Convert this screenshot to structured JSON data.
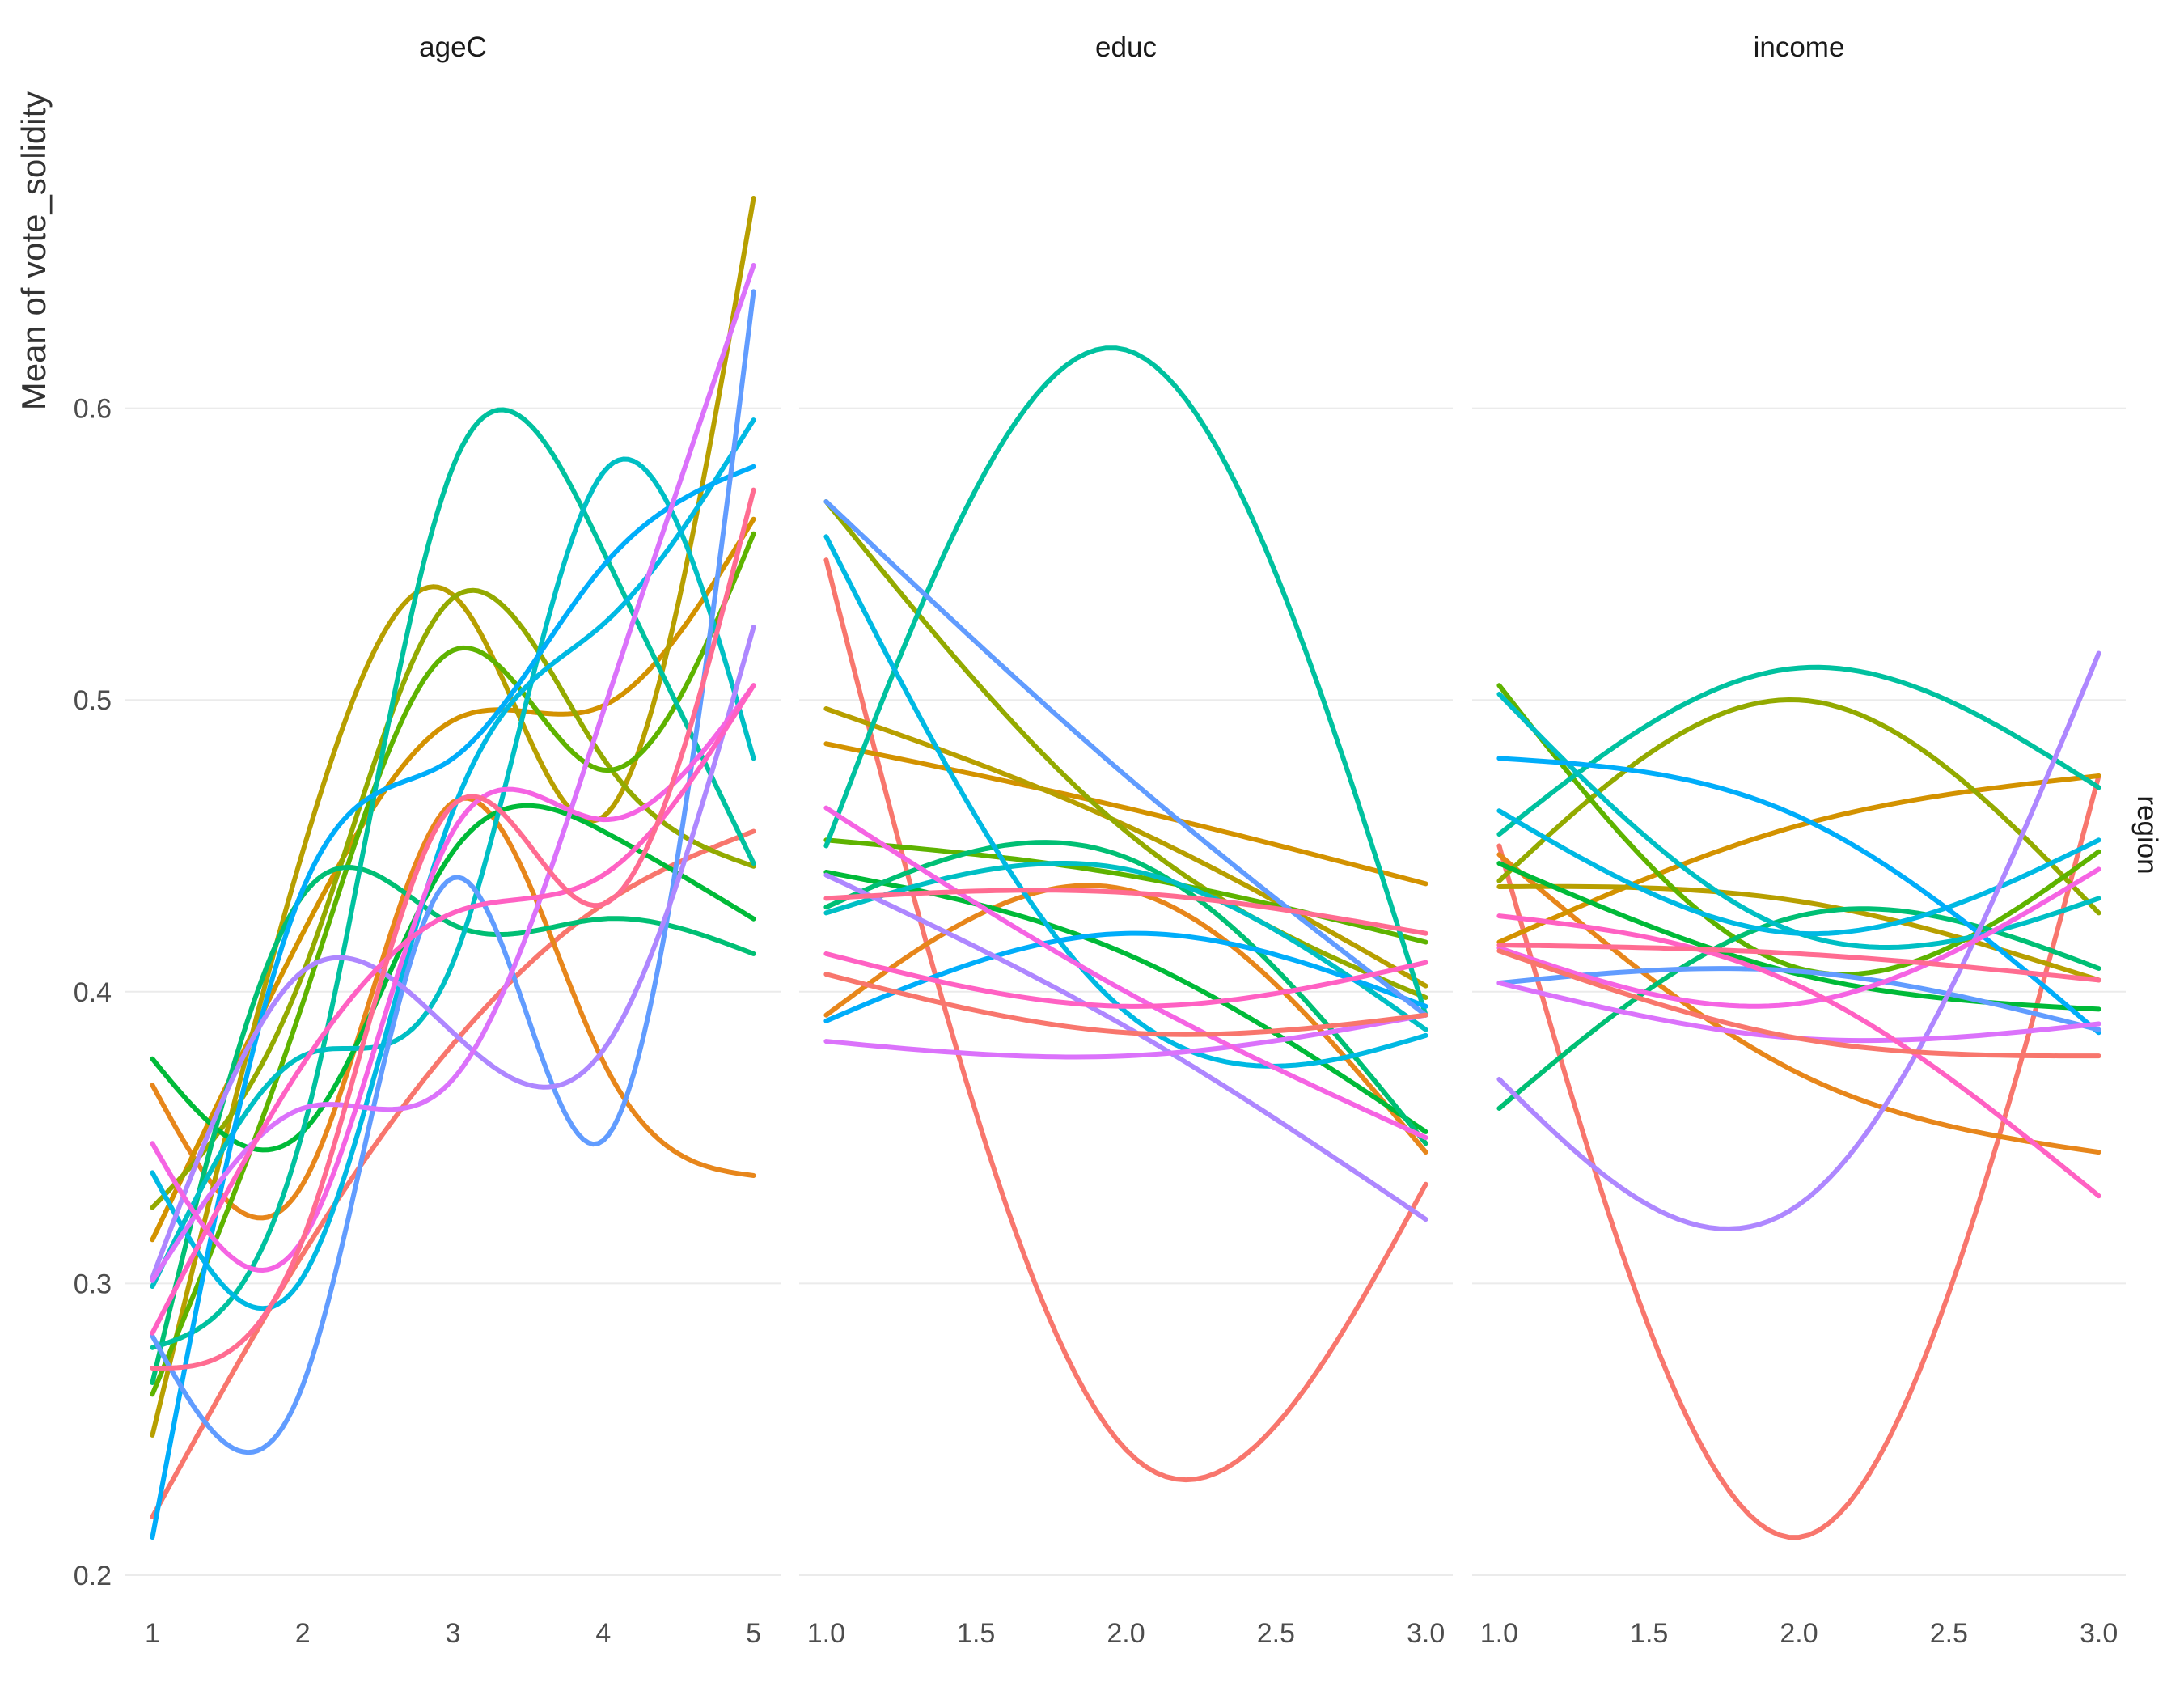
{
  "chart_data": {
    "type": "line",
    "ylabel": "Mean of vote_solidity",
    "right_strip": "region",
    "ylim": [
      0.195,
      0.71
    ],
    "y_ticks": [
      0.2,
      0.3,
      0.4,
      0.5,
      0.6
    ],
    "y_tick_labels": [
      "0.2",
      "0.3",
      "0.4",
      "0.5",
      "0.6"
    ],
    "colors": [
      "#F8766D",
      "#E7861B",
      "#D39200",
      "#B79F00",
      "#93AA00",
      "#5EB300",
      "#00BA38",
      "#00BF74",
      "#00C19F",
      "#00BFC4",
      "#00B9E3",
      "#00ADFA",
      "#619CFF",
      "#AE87FF",
      "#DB72FB",
      "#F564E3",
      "#FF61C3",
      "#FF6C91"
    ],
    "panels": [
      {
        "strip": "ageC",
        "xlim": [
          1,
          5
        ],
        "x_ticks": [
          1,
          2,
          3,
          4,
          5
        ],
        "x_tick_labels": [
          "1",
          "2",
          "3",
          "4",
          "5"
        ],
        "series": [
          {
            "values": [
              0.22,
              0.31,
              0.382,
              0.43,
              0.455
            ]
          },
          {
            "values": [
              0.368,
              0.334,
              0.465,
              0.376,
              0.337
            ]
          },
          {
            "values": [
              0.315,
              0.42,
              0.493,
              0.498,
              0.562
            ]
          },
          {
            "values": [
              0.248,
              0.448,
              0.536,
              0.46,
              0.672
            ]
          },
          {
            "values": [
              0.326,
              0.406,
              0.535,
              0.48,
              0.443
            ]
          },
          {
            "values": [
              0.262,
              0.396,
              0.517,
              0.476,
              0.557
            ]
          },
          {
            "values": [
              0.377,
              0.352,
              0.448,
              0.455,
              0.425
            ]
          },
          {
            "values": [
              0.266,
              0.433,
              0.423,
              0.425,
              0.413
            ]
          },
          {
            "values": [
              0.278,
              0.352,
              0.58,
              0.551,
              0.444
            ]
          },
          {
            "values": [
              0.299,
              0.378,
              0.41,
              0.578,
              0.48
            ]
          },
          {
            "values": [
              0.338,
              0.302,
              0.462,
              0.526,
              0.596
            ]
          },
          {
            "values": [
              0.213,
              0.435,
              0.48,
              0.546,
              0.58
            ]
          },
          {
            "values": [
              0.282,
              0.265,
              0.439,
              0.349,
              0.64
            ]
          },
          {
            "values": [
              0.302,
              0.407,
              0.386,
              0.38,
              0.525
            ]
          },
          {
            "values": [
              0.301,
              0.36,
              0.37,
              0.496,
              0.649
            ]
          },
          {
            "values": [
              0.348,
              0.315,
              0.455,
              0.459,
              0.505
            ]
          },
          {
            "values": [
              0.283,
              0.375,
              0.427,
              0.44,
              0.505
            ]
          },
          {
            "values": [
              0.271,
              0.315,
              0.464,
              0.43,
              0.572
            ]
          }
        ]
      },
      {
        "strip": "educ",
        "xlim": [
          1,
          3
        ],
        "x_ticks": [
          1,
          1.5,
          2,
          2.5,
          3
        ],
        "x_tick_labels": [
          "1.0",
          "1.5",
          "2.0",
          "2.5",
          "3.0"
        ],
        "series": [
          {
            "values": [
              0.548,
              0.243,
              0.334
            ]
          },
          {
            "values": [
              0.392,
              0.435,
              0.345
            ]
          },
          {
            "values": [
              0.485,
              0.463,
              0.437
            ]
          },
          {
            "values": [
              0.497,
              0.457,
              0.402
            ]
          },
          {
            "values": [
              0.568,
              0.455,
              0.398
            ]
          },
          {
            "values": [
              0.452,
              0.44,
              0.417
            ]
          },
          {
            "values": [
              0.441,
              0.413,
              0.352
            ]
          },
          {
            "values": [
              0.429,
              0.446,
              0.348
            ]
          },
          {
            "values": [
              0.45,
              0.62,
              0.392
            ]
          },
          {
            "values": [
              0.427,
              0.442,
              0.387
            ]
          },
          {
            "values": [
              0.556,
              0.393,
              0.385
            ]
          },
          {
            "values": [
              0.39,
              0.42,
              0.395
            ]
          },
          {
            "values": [
              0.568,
              0.474,
              0.392
            ]
          },
          {
            "values": [
              0.44,
              0.388,
              0.322
            ]
          },
          {
            "values": [
              0.383,
              0.378,
              0.392
            ]
          },
          {
            "values": [
              0.463,
              0.4,
              0.35
            ]
          },
          {
            "values": [
              0.413,
              0.395,
              0.41
            ]
          },
          {
            "values": [
              0.432,
              0.434,
              0.42
            ]
          },
          {
            "values": [
              0.406,
              0.386,
              0.392
            ]
          }
        ]
      },
      {
        "strip": "income",
        "xlim": [
          1,
          3
        ],
        "x_ticks": [
          1,
          1.5,
          2,
          2.5,
          3
        ],
        "x_tick_labels": [
          "1.0",
          "1.5",
          "2.0",
          "2.5",
          "3.0"
        ],
        "series": [
          {
            "values": [
              0.45,
              0.213,
              0.474
            ]
          },
          {
            "values": [
              0.447,
              0.372,
              0.345
            ]
          },
          {
            "values": [
              0.417,
              0.457,
              0.474
            ]
          },
          {
            "values": [
              0.436,
              0.431,
              0.404
            ]
          },
          {
            "values": [
              0.438,
              0.5,
              0.427
            ]
          },
          {
            "values": [
              0.505,
              0.408,
              0.448
            ]
          },
          {
            "values": [
              0.444,
              0.406,
              0.394
            ]
          },
          {
            "values": [
              0.36,
              0.426,
              0.408
            ]
          },
          {
            "values": [
              0.454,
              0.511,
              0.47
            ]
          },
          {
            "values": [
              0.502,
              0.42,
              0.432
            ]
          },
          {
            "values": [
              0.462,
              0.42,
              0.452
            ]
          },
          {
            "values": [
              0.48,
              0.46,
              0.386
            ]
          },
          {
            "values": [
              0.403,
              0.407,
              0.387
            ]
          },
          {
            "values": [
              0.37,
              0.327,
              0.516
            ]
          },
          {
            "values": [
              0.403,
              0.384,
              0.389
            ]
          },
          {
            "values": [
              0.415,
              0.396,
              0.442
            ]
          },
          {
            "values": [
              0.426,
              0.402,
              0.33
            ]
          },
          {
            "values": [
              0.416,
              0.413,
              0.404
            ]
          },
          {
            "values": [
              0.414,
              0.384,
              0.378
            ]
          }
        ]
      }
    ]
  }
}
